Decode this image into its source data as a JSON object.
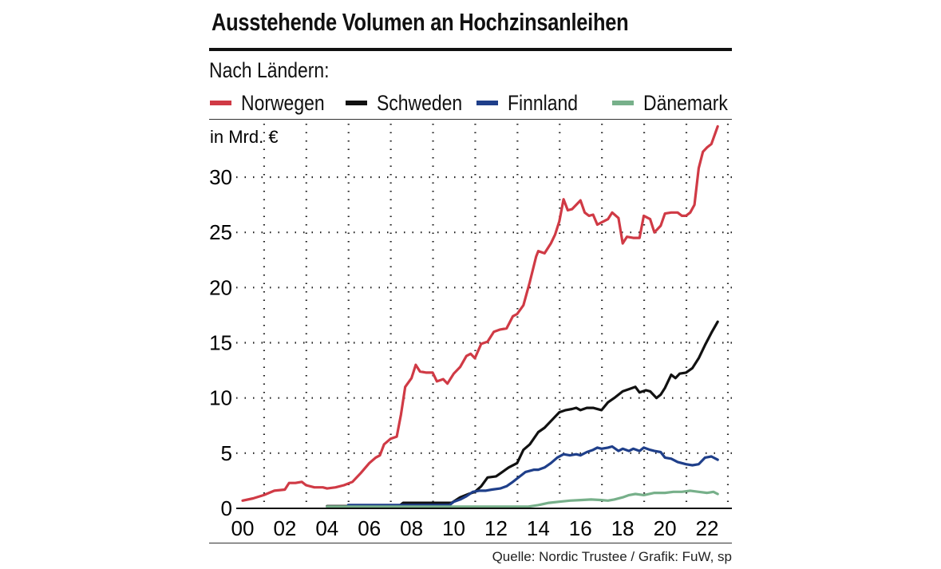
{
  "title": "Ausstehende Volumen an Hochzinsanleihen",
  "subtitle": "Nach Ländern:",
  "source": "Quelle: Nordic Trustee / Grafik: FuW, sp",
  "chart_data": {
    "type": "line",
    "title": "Ausstehende Volumen an Hochzinsanleihen",
    "subtitle": "Nach Ländern:",
    "ylabel": "in Mrd. €",
    "xlabel": "",
    "xlim": [
      2000,
      2023.4
    ],
    "ylim": [
      0,
      34
    ],
    "grid": true,
    "yticks": [
      0,
      5,
      10,
      15,
      20,
      25,
      30
    ],
    "ytick_labels": [
      "0",
      "5",
      "10",
      "15",
      "20",
      "25",
      "30"
    ],
    "xticks": [
      2000,
      2002,
      2004,
      2006,
      2008,
      2010,
      2012,
      2014,
      2016,
      2018,
      2020,
      2022
    ],
    "xtick_labels": [
      "00",
      "02",
      "04",
      "06",
      "08",
      "10",
      "12",
      "14",
      "16",
      "18",
      "20",
      "22"
    ],
    "series": [
      {
        "name": "Norwegen",
        "color": "#d03a45",
        "points": [
          [
            2000.0,
            0.7
          ],
          [
            2000.5,
            0.9
          ],
          [
            2001.0,
            1.2
          ],
          [
            2001.5,
            1.6
          ],
          [
            2002.0,
            1.7
          ],
          [
            2002.2,
            2.3
          ],
          [
            2002.5,
            2.3
          ],
          [
            2002.8,
            2.4
          ],
          [
            2003.0,
            2.1
          ],
          [
            2003.4,
            1.9
          ],
          [
            2003.8,
            1.9
          ],
          [
            2004.0,
            1.8
          ],
          [
            2004.4,
            1.9
          ],
          [
            2004.8,
            2.1
          ],
          [
            2005.2,
            2.4
          ],
          [
            2005.6,
            3.2
          ],
          [
            2006.0,
            4.1
          ],
          [
            2006.3,
            4.6
          ],
          [
            2006.5,
            4.8
          ],
          [
            2006.7,
            5.8
          ],
          [
            2007.0,
            6.3
          ],
          [
            2007.3,
            6.5
          ],
          [
            2007.5,
            8.5
          ],
          [
            2007.7,
            11.0
          ],
          [
            2008.0,
            11.8
          ],
          [
            2008.2,
            13.0
          ],
          [
            2008.4,
            12.4
          ],
          [
            2008.7,
            12.3
          ],
          [
            2009.0,
            12.3
          ],
          [
            2009.2,
            11.5
          ],
          [
            2009.5,
            11.7
          ],
          [
            2009.7,
            11.3
          ],
          [
            2010.0,
            12.2
          ],
          [
            2010.3,
            12.8
          ],
          [
            2010.6,
            13.8
          ],
          [
            2010.8,
            14.0
          ],
          [
            2011.0,
            13.6
          ],
          [
            2011.3,
            14.9
          ],
          [
            2011.6,
            15.1
          ],
          [
            2011.9,
            16.0
          ],
          [
            2012.2,
            16.2
          ],
          [
            2012.5,
            16.3
          ],
          [
            2012.8,
            17.4
          ],
          [
            2013.0,
            17.6
          ],
          [
            2013.3,
            18.4
          ],
          [
            2013.6,
            20.5
          ],
          [
            2013.9,
            22.8
          ],
          [
            2014.0,
            23.3
          ],
          [
            2014.3,
            23.1
          ],
          [
            2014.6,
            24.0
          ],
          [
            2014.8,
            24.8
          ],
          [
            2015.0,
            26.0
          ],
          [
            2015.2,
            28.0
          ],
          [
            2015.4,
            27.0
          ],
          [
            2015.6,
            27.1
          ],
          [
            2015.8,
            27.5
          ],
          [
            2016.0,
            27.9
          ],
          [
            2016.2,
            26.8
          ],
          [
            2016.4,
            26.5
          ],
          [
            2016.6,
            26.6
          ],
          [
            2016.8,
            25.7
          ],
          [
            2017.0,
            25.9
          ],
          [
            2017.3,
            26.2
          ],
          [
            2017.5,
            26.8
          ],
          [
            2017.8,
            26.3
          ],
          [
            2018.0,
            24.0
          ],
          [
            2018.2,
            24.6
          ],
          [
            2018.5,
            24.5
          ],
          [
            2018.8,
            24.5
          ],
          [
            2019.0,
            26.5
          ],
          [
            2019.3,
            26.2
          ],
          [
            2019.5,
            25.0
          ],
          [
            2019.8,
            25.6
          ],
          [
            2020.0,
            26.7
          ],
          [
            2020.3,
            26.8
          ],
          [
            2020.6,
            26.8
          ],
          [
            2020.8,
            26.5
          ],
          [
            2021.0,
            26.5
          ],
          [
            2021.2,
            26.8
          ],
          [
            2021.4,
            27.5
          ],
          [
            2021.6,
            30.8
          ],
          [
            2021.8,
            32.3
          ],
          [
            2022.0,
            32.7
          ],
          [
            2022.2,
            33.0
          ],
          [
            2022.5,
            34.6
          ]
        ]
      },
      {
        "name": "Schweden",
        "color": "#111111",
        "points": [
          [
            2004.0,
            0.2
          ],
          [
            2007.4,
            0.2
          ],
          [
            2007.6,
            0.5
          ],
          [
            2009.9,
            0.5
          ],
          [
            2010.3,
            1.0
          ],
          [
            2010.7,
            1.3
          ],
          [
            2011.0,
            1.5
          ],
          [
            2011.3,
            2.0
          ],
          [
            2011.6,
            2.8
          ],
          [
            2012.0,
            2.9
          ],
          [
            2012.3,
            3.3
          ],
          [
            2012.6,
            3.7
          ],
          [
            2013.0,
            4.1
          ],
          [
            2013.3,
            5.3
          ],
          [
            2013.6,
            5.8
          ],
          [
            2014.0,
            6.9
          ],
          [
            2014.3,
            7.3
          ],
          [
            2014.6,
            7.9
          ],
          [
            2015.0,
            8.7
          ],
          [
            2015.3,
            8.9
          ],
          [
            2015.6,
            9.0
          ],
          [
            2015.8,
            9.1
          ],
          [
            2016.0,
            8.9
          ],
          [
            2016.3,
            9.1
          ],
          [
            2016.6,
            9.1
          ],
          [
            2017.0,
            8.9
          ],
          [
            2017.3,
            9.6
          ],
          [
            2017.6,
            10.0
          ],
          [
            2018.0,
            10.6
          ],
          [
            2018.3,
            10.8
          ],
          [
            2018.6,
            11.0
          ],
          [
            2018.8,
            10.5
          ],
          [
            2019.1,
            10.7
          ],
          [
            2019.3,
            10.6
          ],
          [
            2019.6,
            10.0
          ],
          [
            2019.8,
            10.3
          ],
          [
            2020.0,
            10.9
          ],
          [
            2020.3,
            12.1
          ],
          [
            2020.5,
            11.8
          ],
          [
            2020.7,
            12.2
          ],
          [
            2021.0,
            12.3
          ],
          [
            2021.3,
            12.7
          ],
          [
            2021.6,
            13.6
          ],
          [
            2021.9,
            14.8
          ],
          [
            2022.2,
            15.9
          ],
          [
            2022.5,
            16.9
          ]
        ]
      },
      {
        "name": "Finnland",
        "color": "#1f3f8a",
        "points": [
          [
            2005.0,
            0.3
          ],
          [
            2009.8,
            0.3
          ],
          [
            2010.0,
            0.6
          ],
          [
            2010.3,
            0.8
          ],
          [
            2010.6,
            1.1
          ],
          [
            2010.9,
            1.5
          ],
          [
            2011.2,
            1.6
          ],
          [
            2011.5,
            1.6
          ],
          [
            2011.8,
            1.7
          ],
          [
            2012.2,
            1.8
          ],
          [
            2012.5,
            2.0
          ],
          [
            2012.8,
            2.4
          ],
          [
            2013.0,
            2.7
          ],
          [
            2013.4,
            3.3
          ],
          [
            2013.8,
            3.5
          ],
          [
            2014.0,
            3.5
          ],
          [
            2014.3,
            3.7
          ],
          [
            2014.6,
            4.1
          ],
          [
            2014.9,
            4.6
          ],
          [
            2015.2,
            4.9
          ],
          [
            2015.5,
            4.8
          ],
          [
            2015.8,
            4.9
          ],
          [
            2016.0,
            4.8
          ],
          [
            2016.3,
            5.1
          ],
          [
            2016.6,
            5.3
          ],
          [
            2016.8,
            5.5
          ],
          [
            2017.0,
            5.4
          ],
          [
            2017.3,
            5.5
          ],
          [
            2017.5,
            5.6
          ],
          [
            2017.8,
            5.2
          ],
          [
            2018.0,
            5.4
          ],
          [
            2018.3,
            5.2
          ],
          [
            2018.5,
            5.4
          ],
          [
            2018.8,
            5.2
          ],
          [
            2019.0,
            5.5
          ],
          [
            2019.3,
            5.3
          ],
          [
            2019.5,
            5.2
          ],
          [
            2019.8,
            5.1
          ],
          [
            2020.0,
            4.6
          ],
          [
            2020.3,
            4.5
          ],
          [
            2020.6,
            4.2
          ],
          [
            2021.0,
            4.0
          ],
          [
            2021.3,
            3.9
          ],
          [
            2021.6,
            4.0
          ],
          [
            2021.9,
            4.6
          ],
          [
            2022.2,
            4.7
          ],
          [
            2022.5,
            4.4
          ]
        ]
      },
      {
        "name": "Dänemark",
        "color": "#77b08a",
        "points": [
          [
            2004.0,
            0.15
          ],
          [
            2013.5,
            0.15
          ],
          [
            2014.0,
            0.3
          ],
          [
            2014.5,
            0.5
          ],
          [
            2015.0,
            0.6
          ],
          [
            2015.5,
            0.7
          ],
          [
            2016.0,
            0.75
          ],
          [
            2016.5,
            0.8
          ],
          [
            2017.0,
            0.75
          ],
          [
            2017.3,
            0.7
          ],
          [
            2017.6,
            0.8
          ],
          [
            2018.0,
            1.0
          ],
          [
            2018.3,
            1.2
          ],
          [
            2018.6,
            1.3
          ],
          [
            2019.0,
            1.2
          ],
          [
            2019.5,
            1.4
          ],
          [
            2020.0,
            1.4
          ],
          [
            2020.4,
            1.5
          ],
          [
            2020.8,
            1.5
          ],
          [
            2021.2,
            1.6
          ],
          [
            2021.6,
            1.5
          ],
          [
            2022.0,
            1.4
          ],
          [
            2022.3,
            1.5
          ],
          [
            2022.5,
            1.3
          ]
        ]
      }
    ]
  }
}
